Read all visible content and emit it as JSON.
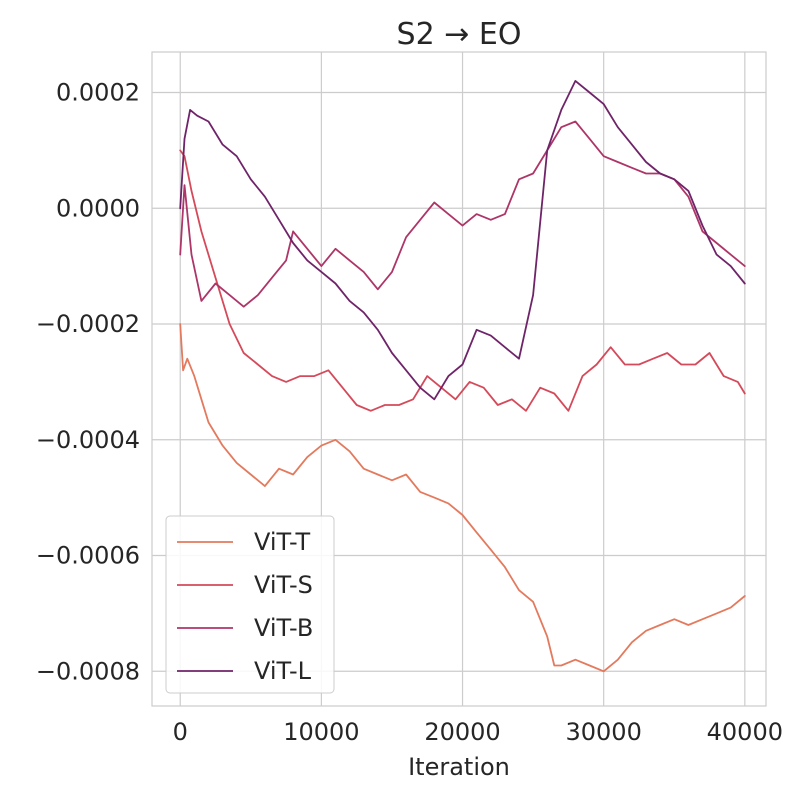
{
  "chart_data": {
    "type": "line",
    "title": "S2 → EO",
    "xlabel": "Iteration",
    "ylabel": "",
    "xlim": [
      -2000,
      41500
    ],
    "ylim": [
      -0.00086,
      0.00027
    ],
    "xticks": [
      0,
      10000,
      20000,
      30000,
      40000
    ],
    "xtick_labels": [
      "0",
      "10000",
      "20000",
      "30000",
      "40000"
    ],
    "yticks": [
      0.0002,
      0.0,
      -0.0002,
      -0.0004,
      -0.0006,
      -0.0008
    ],
    "ytick_labels": [
      "0.0002",
      "0.0000",
      "−0.0002",
      "−0.0004",
      "−0.0006",
      "−0.0008"
    ],
    "grid": true,
    "legend_position": "lower-left",
    "series": [
      {
        "name": "ViT-T",
        "color": "#e37a5e",
        "x": [
          0,
          200,
          500,
          1000,
          1500,
          2000,
          3000,
          4000,
          5000,
          6000,
          7000,
          8000,
          9000,
          10000,
          11000,
          12000,
          13000,
          14000,
          15000,
          16000,
          17000,
          18000,
          19000,
          20000,
          21000,
          22000,
          23000,
          24000,
          25000,
          26000,
          26500,
          27000,
          28000,
          29000,
          30000,
          31000,
          32000,
          33000,
          34000,
          35000,
          36000,
          37000,
          38000,
          39000,
          40000
        ],
        "values": [
          -0.0002,
          -0.00028,
          -0.00026,
          -0.00029,
          -0.00033,
          -0.00037,
          -0.00041,
          -0.00044,
          -0.00046,
          -0.00048,
          -0.00045,
          -0.00046,
          -0.00043,
          -0.00041,
          -0.0004,
          -0.00042,
          -0.00045,
          -0.00046,
          -0.00047,
          -0.00046,
          -0.00049,
          -0.0005,
          -0.00051,
          -0.00053,
          -0.00056,
          -0.00059,
          -0.00062,
          -0.00066,
          -0.00068,
          -0.00074,
          -0.00079,
          -0.00079,
          -0.00078,
          -0.00079,
          -0.0008,
          -0.00078,
          -0.00075,
          -0.00073,
          -0.00072,
          -0.00071,
          -0.00072,
          -0.00071,
          -0.0007,
          -0.00069,
          -0.00067
        ]
      },
      {
        "name": "ViT-S",
        "color": "#d54a5a",
        "x": [
          0,
          300,
          800,
          1500,
          2500,
          3500,
          4500,
          5500,
          6500,
          7500,
          8500,
          9500,
          10500,
          11500,
          12500,
          13500,
          14500,
          15500,
          16500,
          17500,
          18500,
          19500,
          20500,
          21500,
          22500,
          23500,
          24500,
          25500,
          26500,
          27500,
          28500,
          29500,
          30500,
          31500,
          32500,
          33500,
          34500,
          35500,
          36500,
          37500,
          38500,
          39500,
          40000
        ],
        "values": [
          0.0001,
          9e-05,
          3e-05,
          -4e-05,
          -0.00012,
          -0.0002,
          -0.00025,
          -0.00027,
          -0.00029,
          -0.0003,
          -0.00029,
          -0.00029,
          -0.00028,
          -0.00031,
          -0.00034,
          -0.00035,
          -0.00034,
          -0.00034,
          -0.00033,
          -0.00029,
          -0.00031,
          -0.00033,
          -0.0003,
          -0.00031,
          -0.00034,
          -0.00033,
          -0.00035,
          -0.00031,
          -0.00032,
          -0.00035,
          -0.00029,
          -0.00027,
          -0.00024,
          -0.00027,
          -0.00027,
          -0.00026,
          -0.00025,
          -0.00027,
          -0.00027,
          -0.00025,
          -0.00029,
          -0.0003,
          -0.00032
        ]
      },
      {
        "name": "ViT-B",
        "color": "#ad3568",
        "x": [
          0,
          300,
          800,
          1500,
          2500,
          3500,
          4500,
          5500,
          6500,
          7500,
          8000,
          9000,
          10000,
          11000,
          12000,
          13000,
          14000,
          15000,
          16000,
          17000,
          18000,
          19000,
          20000,
          21000,
          22000,
          23000,
          24000,
          25000,
          26000,
          27000,
          28000,
          29000,
          30000,
          31000,
          32000,
          33000,
          34000,
          35000,
          36000,
          37000,
          38000,
          39000,
          40000
        ],
        "values": [
          -8e-05,
          4e-05,
          -8e-05,
          -0.00016,
          -0.00013,
          -0.00015,
          -0.00017,
          -0.00015,
          -0.00012,
          -9e-05,
          -4e-05,
          -7e-05,
          -0.0001,
          -7e-05,
          -9e-05,
          -0.00011,
          -0.00014,
          -0.00011,
          -5e-05,
          -2e-05,
          1e-05,
          -1e-05,
          -3e-05,
          -1e-05,
          -2e-05,
          -1e-05,
          5e-05,
          6e-05,
          0.0001,
          0.00014,
          0.00015,
          0.00012,
          9e-05,
          8e-05,
          7e-05,
          6e-05,
          6e-05,
          5e-05,
          2e-05,
          -4e-05,
          -6e-05,
          -8e-05,
          -0.0001
        ]
      },
      {
        "name": "ViT-L",
        "color": "#6f2469",
        "x": [
          0,
          300,
          700,
          1200,
          2000,
          3000,
          4000,
          5000,
          6000,
          7000,
          8000,
          9000,
          10000,
          11000,
          12000,
          13000,
          14000,
          15000,
          16000,
          17000,
          18000,
          19000,
          20000,
          21000,
          22000,
          23000,
          24000,
          25000,
          26000,
          27000,
          28000,
          29000,
          30000,
          31000,
          32000,
          33000,
          34000,
          35000,
          36000,
          37000,
          38000,
          39000,
          40000
        ],
        "values": [
          0.0,
          0.00012,
          0.00017,
          0.00016,
          0.00015,
          0.00011,
          9e-05,
          5e-05,
          2e-05,
          -2e-05,
          -6e-05,
          -9e-05,
          -0.00011,
          -0.00013,
          -0.00016,
          -0.00018,
          -0.00021,
          -0.00025,
          -0.00028,
          -0.00031,
          -0.00033,
          -0.00029,
          -0.00027,
          -0.00021,
          -0.00022,
          -0.00024,
          -0.00026,
          -0.00015,
          0.0001,
          0.00017,
          0.00022,
          0.0002,
          0.00018,
          0.00014,
          0.00011,
          8e-05,
          6e-05,
          5e-05,
          3e-05,
          -3e-05,
          -8e-05,
          -0.0001,
          -0.00013
        ]
      }
    ]
  }
}
